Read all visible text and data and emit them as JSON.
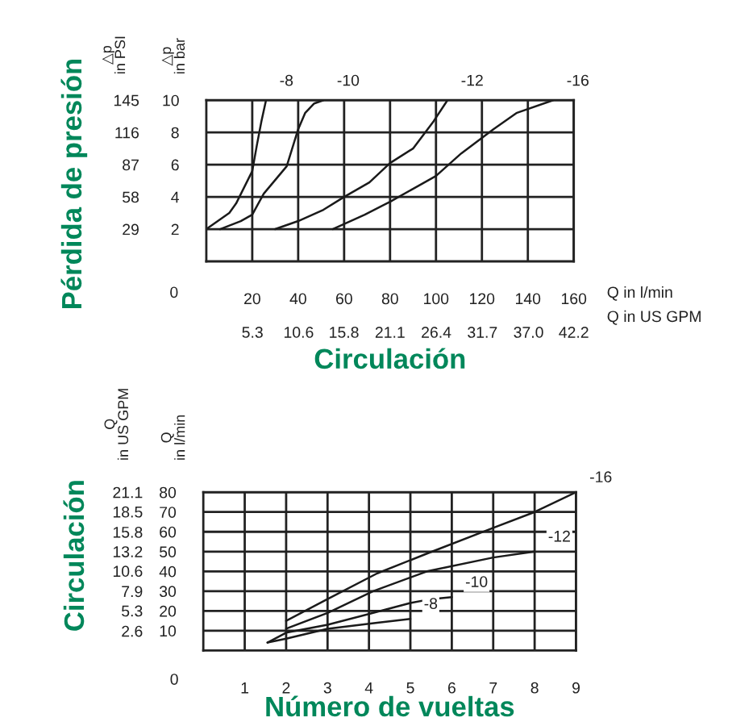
{
  "chart_data": [
    {
      "type": "line",
      "grid": true,
      "xlabel": "Q in l/min",
      "x2label": "Q in US GPM",
      "ylabel": "△p\nin bar",
      "y2label": "△p\nin PSI",
      "annotations": [
        "Pérdida de presión",
        "Circulación",
        "0"
      ],
      "xlim": [
        0,
        160
      ],
      "xticks": [
        20,
        40,
        60,
        80,
        100,
        120,
        140,
        160
      ],
      "x2lim": [
        0,
        42.2
      ],
      "x2ticks": [
        5.3,
        10.6,
        15.8,
        21.1,
        26.4,
        31.7,
        {
          "value": 37,
          "label": "37.0"
        },
        42.2
      ],
      "ylim": [
        0,
        10
      ],
      "yticks": [
        2,
        4,
        6,
        8,
        10
      ],
      "y2lim": [
        0,
        145
      ],
      "y2ticks": [
        29,
        58,
        87,
        116,
        145
      ],
      "series": [
        {
          "name": "-8",
          "color": "#1a1a1a",
          "x": [
            0,
            10,
            13,
            20,
            22,
            24,
            26
          ],
          "values": [
            2,
            3.0,
            3.6,
            5.6,
            7.2,
            8.7,
            10
          ]
        },
        {
          "name": "-10",
          "color": "#1a1a1a",
          "x": [
            6,
            15,
            20,
            25,
            35,
            40,
            43,
            47,
            51
          ],
          "values": [
            2,
            2.5,
            2.9,
            4.2,
            5.9,
            8.2,
            9.2,
            9.8,
            10
          ]
        },
        {
          "name": "-12",
          "color": "#1a1a1a",
          "x": [
            30,
            40,
            51,
            60,
            71,
            80,
            90,
            99,
            105
          ],
          "values": [
            2,
            2.5,
            3.2,
            4.0,
            4.9,
            6.1,
            7.0,
            8.7,
            10
          ]
        },
        {
          "name": "-16",
          "color": "#1a1a1a",
          "x": [
            55,
            69,
            80,
            90,
            100,
            111,
            125,
            135,
            151
          ],
          "values": [
            2,
            2.9,
            3.7,
            4.5,
            5.3,
            6.7,
            8.2,
            9.2,
            10
          ]
        }
      ]
    },
    {
      "type": "line",
      "grid": true,
      "ylabel": "Q\nin l/min",
      "y2label": "Q\nin US GPM",
      "annotations": [
        "Circulación",
        "Número de vueltas",
        "0"
      ],
      "xlim": [
        0,
        9
      ],
      "xticks": [
        1,
        2,
        3,
        4,
        5,
        6,
        7,
        8,
        9
      ],
      "ylim": [
        0,
        80
      ],
      "yticks": [
        10,
        20,
        30,
        40,
        50,
        60,
        70,
        80
      ],
      "y2lim": [
        0,
        21.1
      ],
      "y2ticks": [
        2.6,
        5.3,
        7.9,
        10.6,
        13.2,
        15.8,
        18.5,
        21.1
      ],
      "series": [
        {
          "name": "-8",
          "color": "#1a1a1a",
          "x": [
            1.55,
            2.0,
            3.0,
            4.2,
            5.0
          ],
          "values": [
            4,
            6,
            11,
            14,
            16
          ]
        },
        {
          "name": "-10",
          "color": "#1a1a1a",
          "x": [
            1.55,
            2.0,
            3.0,
            4.1,
            5.0,
            5.5,
            6.0
          ],
          "values": [
            4,
            9,
            13,
            19,
            24,
            26,
            27
          ]
        },
        {
          "name": "-12",
          "color": "#1a1a1a",
          "x": [
            2.0,
            3.0,
            4.1,
            5.4,
            7.0,
            8.0
          ],
          "values": [
            11,
            19,
            30,
            40,
            47,
            50
          ]
        },
        {
          "name": "-16",
          "color": "#1a1a1a",
          "x": [
            2.0,
            3.0,
            4.2,
            5.4,
            7.0,
            8.0,
            9.0
          ],
          "values": [
            15,
            26,
            39,
            49,
            62,
            70,
            80
          ]
        }
      ]
    }
  ]
}
